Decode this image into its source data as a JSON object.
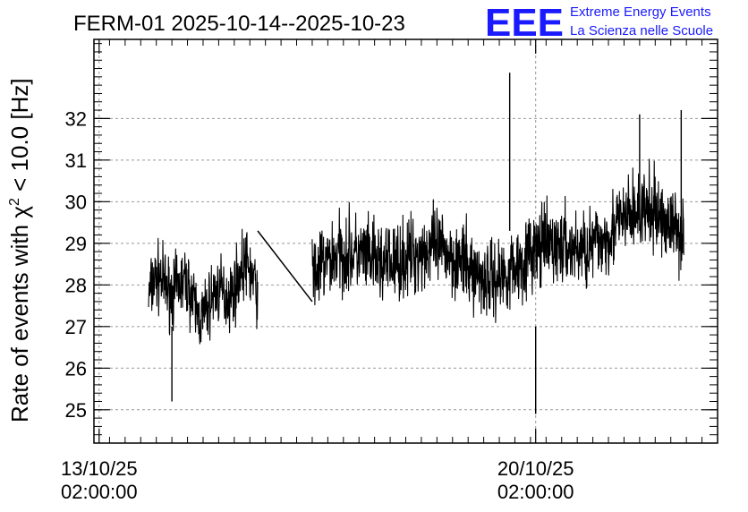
{
  "chart_data": {
    "type": "line",
    "title": "FERM-01 2025-10-14--2025-10-23",
    "ylabel": "Rate of events with χ² < 10.0 [Hz]",
    "ylabel_parts": {
      "prefix": "Rate of events with χ",
      "sup": "2",
      "suffix": " < 10.0 [Hz]"
    },
    "xlabel": "",
    "x_unit": "date",
    "xlim": [
      "2025-10-13 00:00",
      "2025-10-23 00:00"
    ],
    "ylim": [
      24.2,
      33.9
    ],
    "y_ticks": [
      25,
      26,
      27,
      28,
      29,
      30,
      31,
      32
    ],
    "x_tick_labels": [
      {
        "date": "2025-10-13 02:00",
        "line1": "13/10/25",
        "line2": "02:00:00"
      },
      {
        "date": "2025-10-20 02:00",
        "line1": "20/10/25",
        "line2": "02:00:00"
      }
    ],
    "grid": true,
    "series": [
      {
        "color": "#000000",
        "style": "dense noisy line",
        "segments": [
          {
            "x_start": "2025-10-13 21:00",
            "x_end": "2025-10-15 15:00",
            "mean_start": 27.7,
            "mean_end": 27.9,
            "amplitude": 1.2
          },
          {
            "x_start": "2025-10-16 12:00",
            "x_end": "2025-10-22 11:00",
            "mean_start": 28.2,
            "mean_end": 29.3,
            "amplitude": 1.4
          }
        ],
        "gap_connector": {
          "from": [
            "2025-10-15 15:00",
            29.3
          ],
          "to": [
            "2025-10-16 12:00",
            27.6
          ]
        },
        "extremes": [
          {
            "x": "2025-10-19 16:00",
            "y": 33.1
          },
          {
            "x": "2025-10-20 02:00",
            "y": 24.9
          },
          {
            "x": "2025-10-21 18:00",
            "y": 32.1
          },
          {
            "x": "2025-10-22 10:00",
            "y": 32.2
          },
          {
            "x": "2025-10-14 06:00",
            "y": 25.2
          }
        ]
      }
    ]
  },
  "logo": {
    "mark": "EEE",
    "line1": "Extreme Energy Events",
    "line2": "La Scienza nelle Scuole",
    "color": "#1a1aff"
  }
}
